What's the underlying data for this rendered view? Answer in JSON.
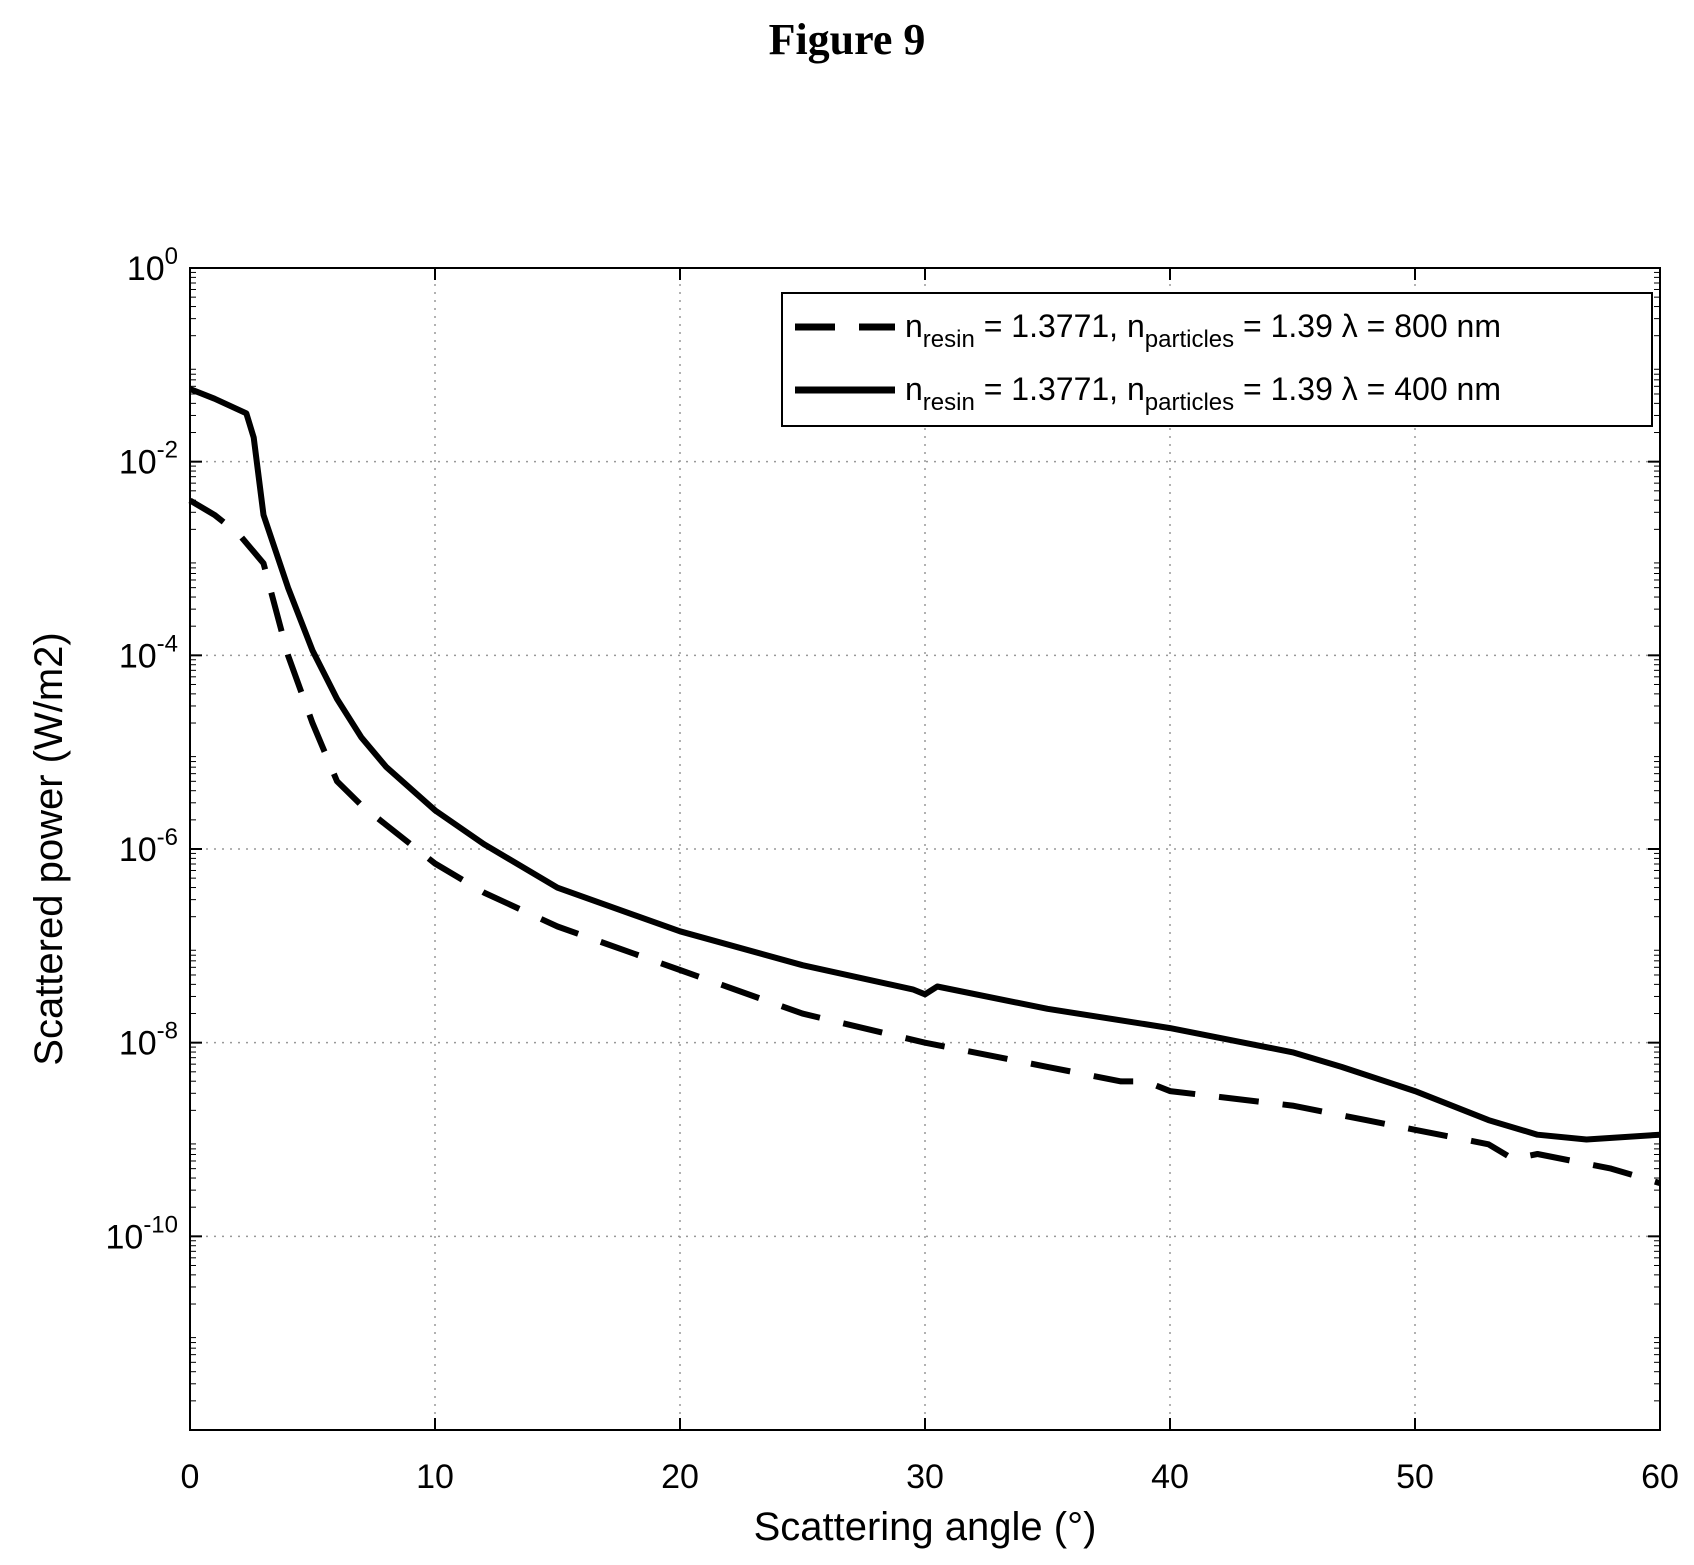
{
  "figure_label": "Figure 9",
  "chart_data": {
    "type": "line",
    "title": "",
    "xlabel": "Scattering angle (°)",
    "ylabel": "Scattered power (W/m2)",
    "xlim": [
      0,
      60
    ],
    "ylim_exponent": [
      -12,
      0
    ],
    "yscale": "log",
    "grid": true,
    "legend_position": "top-right",
    "x_ticks": [
      0,
      10,
      20,
      30,
      40,
      50,
      60
    ],
    "y_ticks": [
      {
        "base": "10",
        "exp": "0"
      },
      {
        "base": "10",
        "exp": "-2"
      },
      {
        "base": "10",
        "exp": "-4"
      },
      {
        "base": "10",
        "exp": "-6"
      },
      {
        "base": "10",
        "exp": "-8"
      },
      {
        "base": "10",
        "exp": "-10"
      }
    ],
    "series": [
      {
        "name": "resin800",
        "legend": {
          "n1": "n",
          "sub1": "resin",
          "mid": " = 1.3771, n",
          "sub2": "particles",
          "end": " = 1.39 λ = 800 nm"
        },
        "style": "dashed",
        "color": "#000000",
        "x": [
          0,
          1,
          2,
          3,
          4,
          5,
          6,
          7,
          8,
          10,
          12,
          15,
          20,
          25,
          30,
          35,
          38,
          39,
          40,
          45,
          48,
          50,
          53,
          54,
          55,
          58,
          60
        ],
        "logy": [
          -2.4,
          -2.55,
          -2.75,
          -3.05,
          -4.0,
          -4.7,
          -5.3,
          -5.55,
          -5.75,
          -6.15,
          -6.45,
          -6.8,
          -7.25,
          -7.7,
          -8.0,
          -8.25,
          -8.4,
          -8.4,
          -8.5,
          -8.65,
          -8.8,
          -8.9,
          -9.05,
          -9.2,
          -9.15,
          -9.3,
          -9.45
        ]
      },
      {
        "name": "resin400",
        "legend": {
          "n1": "n",
          "sub1": "resin",
          "mid": " = 1.3771, n",
          "sub2": "particles",
          "end": " = 1.39 λ = 400 nm"
        },
        "style": "solid",
        "color": "#000000",
        "x": [
          0,
          1,
          2.3,
          2.6,
          3,
          4,
          5,
          6,
          7,
          8,
          10,
          12,
          15,
          20,
          25,
          29.5,
          30,
          30.5,
          35,
          40,
          45,
          47,
          50,
          53,
          55,
          57,
          60
        ],
        "logy": [
          -1.25,
          -1.35,
          -1.5,
          -1.75,
          -2.55,
          -3.3,
          -3.95,
          -4.45,
          -4.85,
          -5.15,
          -5.6,
          -5.95,
          -6.4,
          -6.85,
          -7.2,
          -7.45,
          -7.5,
          -7.42,
          -7.65,
          -7.85,
          -8.1,
          -8.25,
          -8.5,
          -8.8,
          -8.95,
          -9.0,
          -8.95
        ]
      }
    ]
  }
}
